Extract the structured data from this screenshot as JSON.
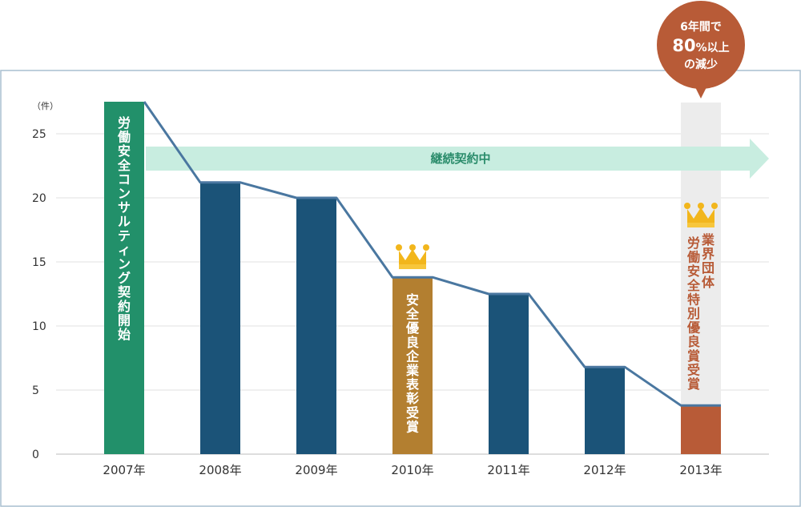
{
  "chart_data": {
    "type": "bar",
    "unit_label": "（件）",
    "categories": [
      "2007年",
      "2008年",
      "2009年",
      "2010年",
      "2011年",
      "2012年",
      "2013年"
    ],
    "values": [
      27.5,
      21.2,
      20.0,
      13.8,
      12.5,
      6.8,
      3.8
    ],
    "yticks": [
      "0",
      "5",
      "10",
      "15",
      "20",
      "25"
    ],
    "ylim": [
      0,
      27.5
    ],
    "grid": true,
    "line_overlay": true,
    "bar_labels": {
      "2007": "労働安全コンサルティング契約開始",
      "2010": "安全優良企業表彰受賞",
      "2013_a": "業界団体",
      "2013_b": "労働安全特別優良賞受賞"
    },
    "banner": "継続契約中",
    "callout": [
      "6年間で",
      "80",
      "%以上",
      "の減少"
    ],
    "colors": {
      "bar_default": "#1b5378",
      "bar_2007": "#22906a",
      "bar_2010": "#b37f30",
      "bar_2013": "#b85b37",
      "line": "#4a77a0",
      "banner": "#c8ede0",
      "highlight_column": "#ececec",
      "callout": "#b85b37",
      "crown": "#f2b61c"
    },
    "icons": [
      "crown-icon"
    ]
  }
}
